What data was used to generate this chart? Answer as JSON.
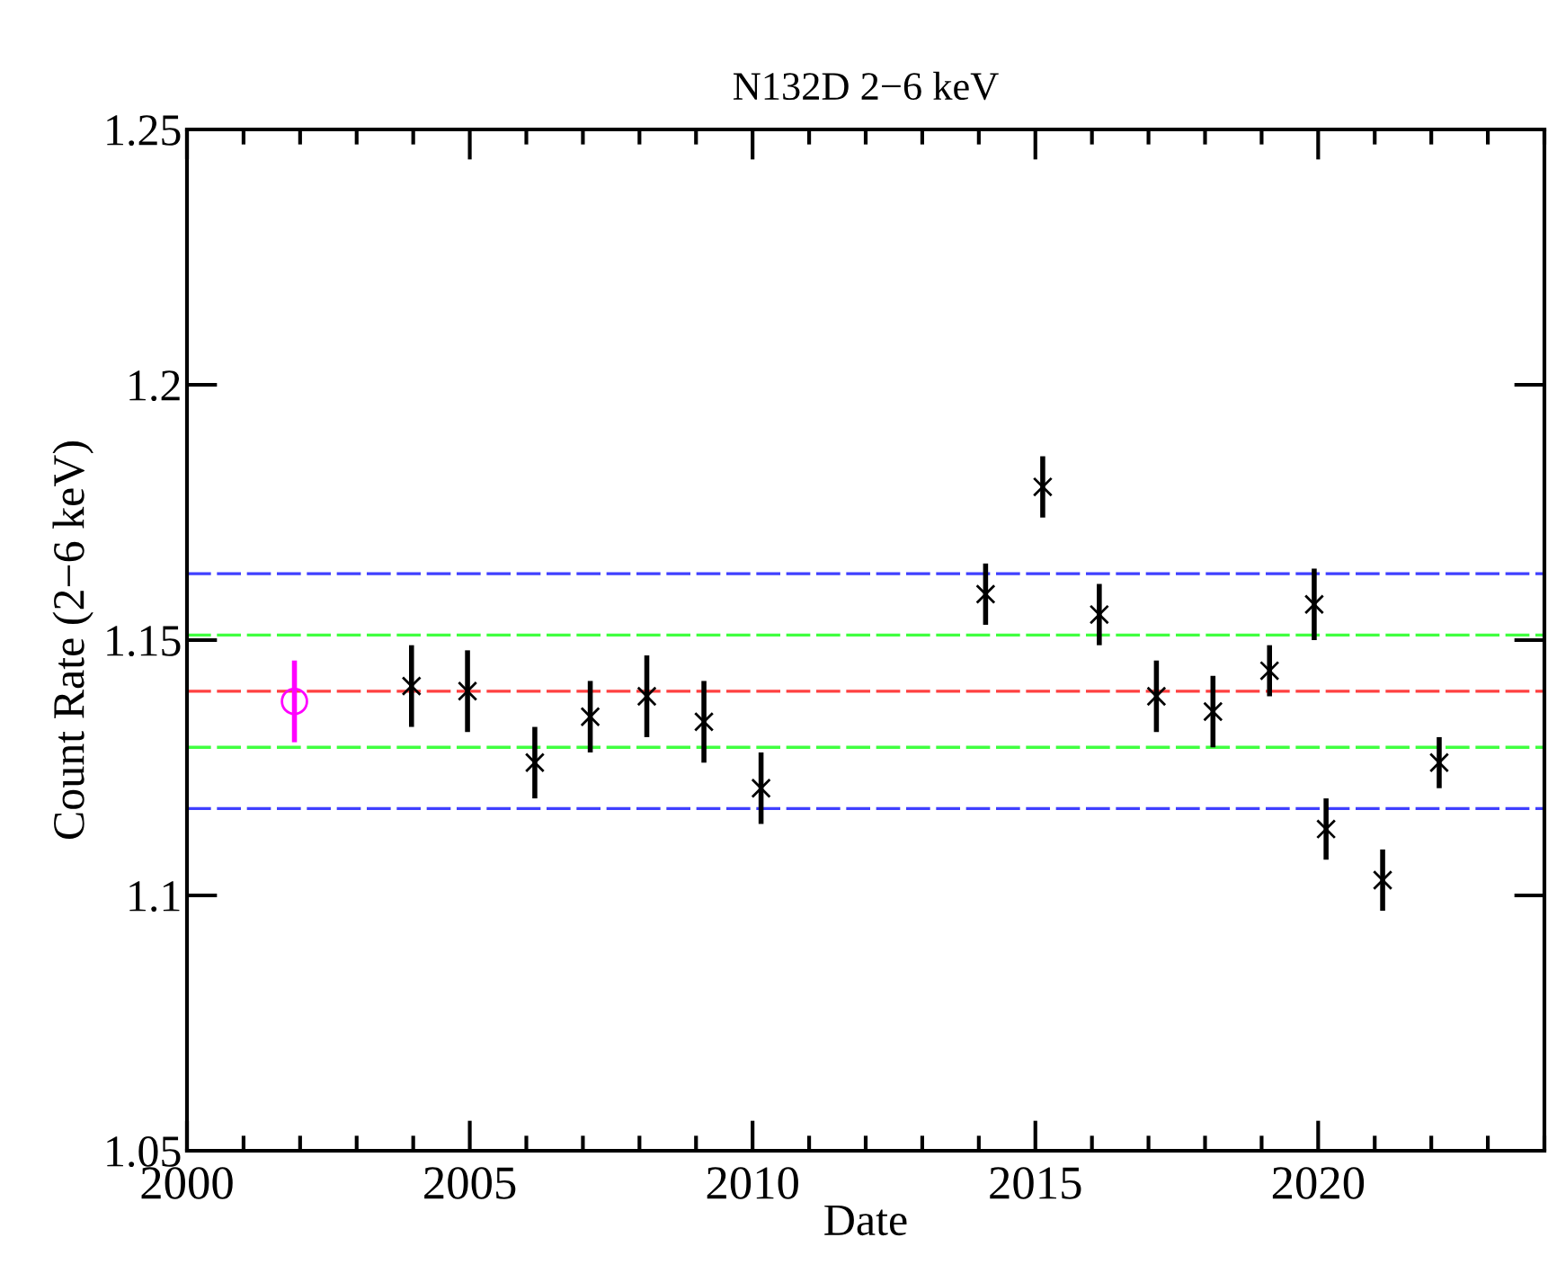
{
  "chart_data": {
    "type": "scatter",
    "title": "N132D 2−6 keV",
    "xlabel": "Date",
    "ylabel": "Count Rate (2−6 keV)",
    "xlim": [
      2000,
      2024
    ],
    "xticks": [
      2000,
      2005,
      2010,
      2015,
      2020
    ],
    "ylim": [
      1.05,
      1.25
    ],
    "yticks": [
      1.05,
      1.1,
      1.15,
      1.2,
      1.25
    ],
    "grid": false,
    "legend": false,
    "series": [
      {
        "color": "#ff00ff",
        "marker": "circle",
        "x": [
          2001.9
        ],
        "values": [
          1.138
        ],
        "errors": [
          0.008
        ]
      },
      {
        "color": "#000000",
        "marker": "cross",
        "x": [
          2003.97,
          2004.96,
          2006.15,
          2007.13,
          2008.13,
          2009.14,
          2010.15,
          2014.12,
          2015.13,
          2016.13,
          2017.14,
          2018.14,
          2019.14,
          2019.93,
          2020.14,
          2021.14,
          2022.14
        ],
        "values": [
          1.141,
          1.14,
          1.126,
          1.135,
          1.139,
          1.134,
          1.121,
          1.159,
          1.18,
          1.155,
          1.139,
          1.136,
          1.144,
          1.157,
          1.113,
          1.103,
          1.126
        ],
        "errors": [
          0.008,
          0.008,
          0.007,
          0.007,
          0.008,
          0.008,
          0.007,
          0.006,
          0.006,
          0.006,
          0.007,
          0.007,
          0.005,
          0.007,
          0.006,
          0.006,
          0.005
        ]
      }
    ],
    "ref_lines": [
      {
        "axis": "y",
        "value": 1.163,
        "color": "#4040ff",
        "line_style": "dashed"
      },
      {
        "axis": "y",
        "value": 1.151,
        "color": "#40ff40",
        "line_style": "dashed"
      },
      {
        "axis": "y",
        "value": 1.14,
        "color": "#ff4040",
        "line_style": "dashed"
      },
      {
        "axis": "y",
        "value": 1.129,
        "color": "#40ff40",
        "line_style": "dashed"
      },
      {
        "axis": "y",
        "value": 1.117,
        "color": "#4040ff",
        "line_style": "dashed"
      }
    ]
  }
}
